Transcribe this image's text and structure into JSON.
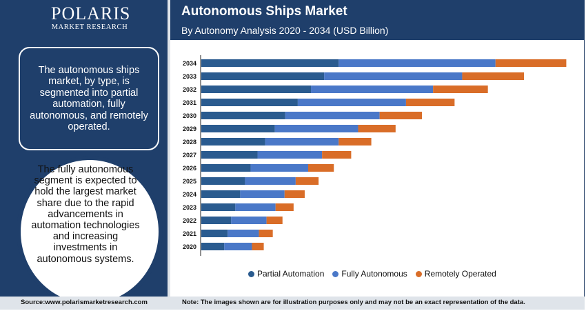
{
  "brand": {
    "name": "POLARIS",
    "tagline": "MARKET RESEARCH"
  },
  "header": {
    "title": "Autonomous Ships Market",
    "subtitle": "By Autonomy Analysis 2020 - 2034 (USD Billion)"
  },
  "sidebar": {
    "box_text": "The autonomous ships market, by type, is segmented into partial automation, fully autonomous, and remotely operated.",
    "circle_text": "The fully autonomous segment is expected to hold the largest market share due to the rapid advancements in automation technologies and increasing investments in autonomous systems."
  },
  "footer": {
    "source": "Source:www.polarismarketresearch.com",
    "note": "Note: The images shown are for illustration purposes only and may not be an exact representation of the data."
  },
  "colors": {
    "partial": "#2a5b8f",
    "fully": "#4a78c8",
    "remote": "#d96d28"
  },
  "chart_data": {
    "type": "bar",
    "orientation": "horizontal",
    "stacked": true,
    "categories": [
      "2034",
      "2033",
      "2032",
      "2031",
      "2030",
      "2029",
      "2028",
      "2027",
      "2026",
      "2025",
      "2024",
      "2023",
      "2022",
      "2021",
      "2020"
    ],
    "series": [
      {
        "name": "Partial Automation",
        "color": "#2a5b8f",
        "values": [
          19.8,
          17.7,
          15.8,
          13.9,
          12.1,
          10.6,
          9.2,
          8.1,
          7.1,
          6.3,
          5.6,
          4.9,
          4.3,
          3.8,
          3.3
        ]
      },
      {
        "name": "Fully Autonomous",
        "color": "#4a78c8",
        "values": [
          22.6,
          19.9,
          17.6,
          15.6,
          13.6,
          12.0,
          10.6,
          9.3,
          8.3,
          7.3,
          6.4,
          5.8,
          5.1,
          4.5,
          4.0
        ]
      },
      {
        "name": "Remotely Operated",
        "color": "#d96d28",
        "values": [
          10.2,
          8.9,
          7.9,
          7.0,
          6.1,
          5.4,
          4.7,
          4.2,
          3.7,
          3.3,
          2.9,
          2.6,
          2.3,
          2.0,
          1.7
        ]
      }
    ],
    "legend_position": "bottom",
    "grid": false
  }
}
